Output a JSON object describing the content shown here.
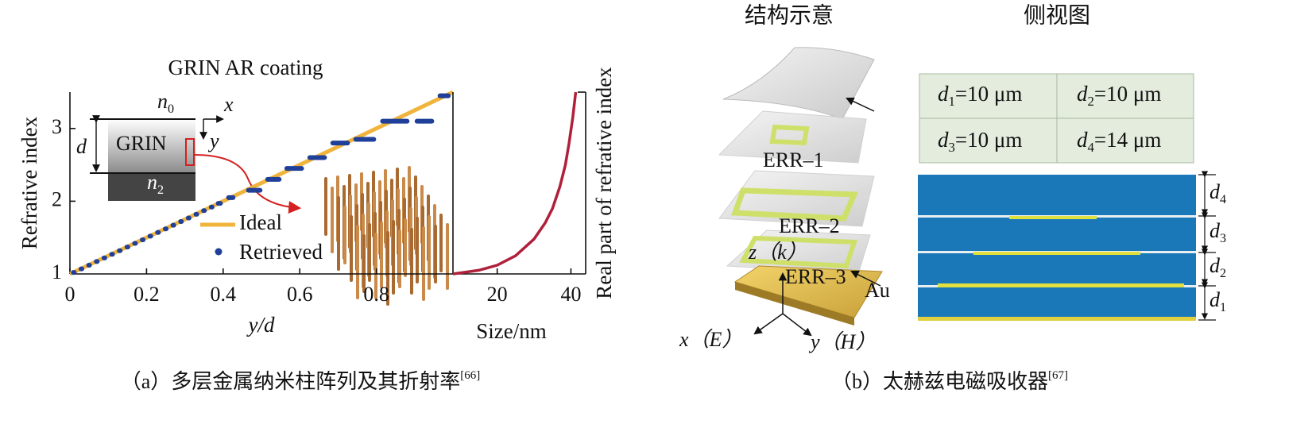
{
  "chart_data": [
    {
      "type": "line",
      "title": "GRIN AR coating",
      "xlabel": "y/d",
      "ylabel": "Refrative index",
      "xlim": [
        0,
        1
      ],
      "ylim": [
        1,
        3.5
      ],
      "xticks": [
        0,
        0.2,
        0.4,
        0.6,
        0.8
      ],
      "yticks": [
        1,
        2,
        3
      ],
      "legend": "lower center",
      "series": [
        {
          "name": "Ideal",
          "color": "#f0b43c",
          "x": [
            0,
            1
          ],
          "values": [
            1,
            3.5
          ]
        },
        {
          "name": "Retrieved",
          "type": "scatter",
          "color": "#1f3f99",
          "x": [
            0.01,
            0.03,
            0.05,
            0.07,
            0.09,
            0.11,
            0.13,
            0.15,
            0.17,
            0.19,
            0.21,
            0.23,
            0.25,
            0.27,
            0.29,
            0.31,
            0.33,
            0.35,
            0.37,
            0.39,
            0.42,
            0.46,
            0.51,
            0.56,
            0.62,
            0.68,
            0.74,
            0.81,
            0.9,
            0.96
          ],
          "values": [
            1.02,
            1.07,
            1.12,
            1.17,
            1.22,
            1.27,
            1.32,
            1.37,
            1.42,
            1.47,
            1.52,
            1.57,
            1.62,
            1.67,
            1.72,
            1.77,
            1.82,
            1.87,
            1.92,
            1.97,
            2.05,
            2.15,
            2.3,
            2.45,
            2.6,
            2.8,
            2.85,
            3.1,
            3.1,
            3.45
          ]
        }
      ]
    },
    {
      "type": "line",
      "xlabel": "Size/nm",
      "ylabel": "Real part of refrative index",
      "xlim": [
        8,
        44
      ],
      "ylim": [
        1,
        3.5
      ],
      "xticks": [
        20,
        40
      ],
      "series": [
        {
          "color": "#b0203a",
          "x": [
            8,
            15,
            20,
            25,
            30,
            33,
            35,
            37,
            38.5,
            39.5,
            40.5,
            41.3
          ],
          "values": [
            1,
            1.05,
            1.12,
            1.25,
            1.48,
            1.7,
            1.9,
            2.2,
            2.5,
            2.8,
            3.15,
            3.5
          ]
        }
      ]
    }
  ],
  "panel_a": {
    "inset": {
      "n0": {
        "main": "n",
        "sub": "0"
      },
      "n2": {
        "main": "n",
        "sub": "2"
      },
      "grin": "GRIN",
      "d": "d",
      "x": "x",
      "y": "y"
    },
    "caption": {
      "text": "（a）多层金属纳米柱阵列及其折射率",
      "ref": "[66]"
    }
  },
  "panel_b": {
    "titles": [
      "结构示意",
      "侧视图"
    ],
    "table": [
      [
        {
          "main": "d",
          "sub": "1",
          "rest": "=10 μm"
        },
        {
          "main": "d",
          "sub": "2",
          "rest": "=10 μm"
        }
      ],
      [
        {
          "main": "d",
          "sub": "3",
          "rest": "=10 μm"
        },
        {
          "main": "d",
          "sub": "4",
          "rest": "=14 μm"
        }
      ]
    ],
    "layers": [
      "ERR–1",
      "ERR–2",
      "ERR–3",
      "Au"
    ],
    "axes": [
      "z（k）",
      "x（E）",
      "y（H）"
    ],
    "side_labels": [
      {
        "main": "d",
        "sub": "4"
      },
      {
        "main": "d",
        "sub": "3"
      },
      {
        "main": "d",
        "sub": "2"
      },
      {
        "main": "d",
        "sub": "1"
      }
    ],
    "caption": {
      "text": "（b）太赫兹电磁吸收器",
      "ref": "[67]"
    }
  }
}
